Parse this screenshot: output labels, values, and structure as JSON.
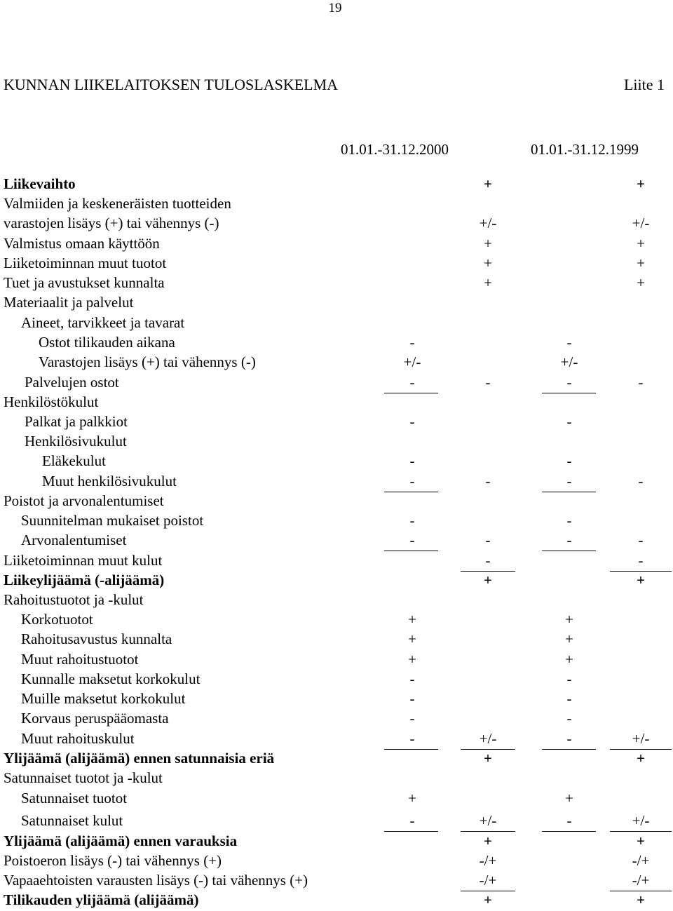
{
  "page_number": "19",
  "header": {
    "title": "KUNNAN LIIKELAITOKSEN TULOSLASKELMA",
    "attachment": "Liite 1"
  },
  "table": {
    "columns": [
      "01.01.-31.12.2000",
      "01.01.-31.12.1999"
    ],
    "rows": [
      {
        "label": "Liikevaihto",
        "cells": [
          null,
          "+",
          null,
          "+"
        ]
      },
      {
        "label": "Valmiiden ja keskeneräisten tuotteiden",
        "cells": [
          null,
          null,
          null,
          null
        ]
      },
      {
        "label": "varastojen lisäys (+) tai vähennys (-)",
        "cells": [
          null,
          "+/-",
          null,
          "+/-"
        ]
      },
      {
        "label": "Valmistus omaan käyttöön",
        "cells": [
          null,
          "+",
          null,
          "+"
        ]
      },
      {
        "label": "Liiketoiminnan muut tuotot",
        "cells": [
          null,
          "+",
          null,
          "+"
        ]
      },
      {
        "label": "Tuet ja avustukset kunnalta",
        "cells": [
          null,
          "+",
          null,
          "+"
        ]
      },
      {
        "label": "Materiaalit ja palvelut",
        "cells": [
          null,
          null,
          null,
          null
        ]
      },
      {
        "label": "Aineet, tarvikkeet ja tavarat",
        "cells": [
          null,
          null,
          null,
          null
        ]
      },
      {
        "label": "Ostot tilikauden aikana",
        "cells": [
          "-",
          null,
          "-",
          null
        ]
      },
      {
        "label": "Varastojen lisäys (+) tai vähennys (-)",
        "cells": [
          "+/-",
          null,
          "+/-",
          null
        ]
      },
      {
        "label": "Palvelujen ostot",
        "cells": [
          "-",
          "-",
          "-",
          "-"
        ]
      },
      {
        "label": "Henkilöstökulut",
        "cells": [
          null,
          null,
          null,
          null
        ]
      },
      {
        "label": "Palkat ja palkkiot",
        "cells": [
          "-",
          null,
          "-",
          null
        ]
      },
      {
        "label": "Henkilösivukulut",
        "cells": [
          null,
          null,
          null,
          null
        ]
      },
      {
        "label": "Eläkekulut",
        "cells": [
          "-",
          null,
          "-",
          null
        ]
      },
      {
        "label": "Muut henkilösivukulut",
        "cells": [
          "-",
          "-",
          "-",
          "-"
        ]
      },
      {
        "label": "Poistot ja arvonalentumiset",
        "cells": [
          null,
          null,
          null,
          null
        ]
      },
      {
        "label": "Suunnitelman mukaiset poistot",
        "cells": [
          "-",
          null,
          "-",
          null
        ]
      },
      {
        "label": "Arvonalentumiset",
        "cells": [
          "-",
          "-",
          "-",
          "-"
        ]
      },
      {
        "label": "Liiketoiminnan muut kulut",
        "cells": [
          null,
          "-",
          null,
          "-"
        ]
      },
      {
        "label": "Liikeylijäämä (-alijäämä)",
        "cells": [
          null,
          "+",
          null,
          "+"
        ]
      },
      {
        "label": "Rahoitustuotot ja -kulut",
        "cells": [
          null,
          null,
          null,
          null
        ]
      },
      {
        "label": "Korkotuotot",
        "cells": [
          "+",
          null,
          "+",
          null
        ]
      },
      {
        "label": "Rahoitusavustus kunnalta",
        "cells": [
          "+",
          null,
          "+",
          null
        ]
      },
      {
        "label": "Muut rahoitustuotot",
        "cells": [
          "+",
          null,
          "+",
          null
        ]
      },
      {
        "label": "Kunnalle maksetut korkokulut",
        "cells": [
          "-",
          null,
          "-",
          null
        ]
      },
      {
        "label": "Muille maksetut korkokulut",
        "cells": [
          "-",
          null,
          "-",
          null
        ]
      },
      {
        "label": "Korvaus peruspääomasta",
        "cells": [
          "-",
          null,
          "-",
          null
        ]
      },
      {
        "label": "Muut rahoituskulut",
        "cells": [
          "-",
          "+/-",
          "-",
          "+/-"
        ]
      },
      {
        "label": "Ylijäämä (alijäämä) ennen satunnaisia eriä",
        "cells": [
          null,
          "+",
          null,
          "+"
        ]
      },
      {
        "label": "Satunnaiset tuotot ja -kulut",
        "cells": [
          null,
          null,
          null,
          null
        ]
      },
      {
        "label": "Satunnaiset tuotot",
        "cells": [
          "+",
          null,
          "+",
          null
        ]
      },
      {
        "label": "Satunnaiset kulut",
        "cells": [
          "-",
          "+/-",
          "-",
          "+/-"
        ]
      },
      {
        "label": "Ylijäämä (alijäämä) ennen varauksia",
        "cells": [
          null,
          "+",
          null,
          "+"
        ]
      },
      {
        "label": "Poistoeron lisäys (-) tai vähennys (+)",
        "cells": [
          null,
          "-/+",
          null,
          "-/+"
        ]
      },
      {
        "label": "Vapaaehtoisten varausten lisäys (-) tai vähennys (+)",
        "cells": [
          null,
          "-/+",
          null,
          "-/+"
        ]
      },
      {
        "label": "Tilikauden ylijäämä (alijäämä)",
        "cells": [
          null,
          "+",
          null,
          "+"
        ]
      }
    ]
  }
}
